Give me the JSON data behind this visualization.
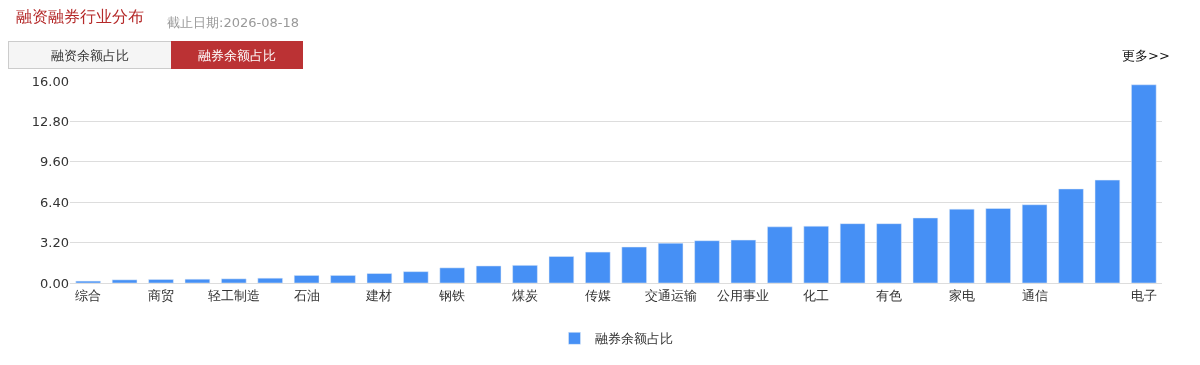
{
  "chart_data": {
    "type": "bar",
    "title": "融资融券行业分布",
    "annotations": [
      "截止日期:2026-08-18",
      "融资余额占比",
      "融券余额占比",
      "更多>>"
    ],
    "categories": [
      "综合",
      null,
      "商贸",
      null,
      "轻工制造",
      null,
      "石油",
      null,
      "建材",
      null,
      "钢铁",
      null,
      "煤炭",
      null,
      "传媒",
      null,
      "交通运输",
      null,
      "公用事业",
      null,
      "化工",
      null,
      "有色",
      null,
      "家电",
      null,
      "通信",
      null,
      null,
      "电子"
    ],
    "series": [
      {
        "name": "融券余额占比",
        "color": "#4690f5",
        "values": [
          0.15,
          0.25,
          0.28,
          0.3,
          0.33,
          0.38,
          0.6,
          0.6,
          0.75,
          0.9,
          1.2,
          1.35,
          1.4,
          2.1,
          2.45,
          2.85,
          3.15,
          3.35,
          3.4,
          4.45,
          4.5,
          4.7,
          4.7,
          5.15,
          5.85,
          5.9,
          6.2,
          7.45,
          8.15,
          15.7
        ]
      }
    ],
    "ylim": [
      0,
      16
    ],
    "yticks": [
      {
        "value": 0,
        "label": "0.00"
      },
      {
        "value": 3.2,
        "label": "3.20"
      },
      {
        "value": 6.4,
        "label": "6.40"
      },
      {
        "value": 9.6,
        "label": "9.60"
      },
      {
        "value": 12.8,
        "label": "12.80"
      },
      {
        "value": 16,
        "label": "16.00"
      }
    ],
    "grid": "y",
    "legend": "bottom"
  }
}
